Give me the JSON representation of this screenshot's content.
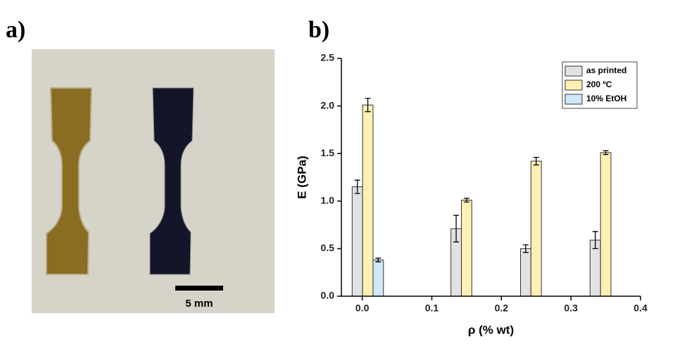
{
  "panels": {
    "a": "a)",
    "b": "b)"
  },
  "photo": {
    "scale_label": "5 mm"
  },
  "chart_data": {
    "type": "bar",
    "xlabel": "ρ (% wt)",
    "ylabel": "E (GPa)",
    "xlim": [
      -0.03,
      0.4
    ],
    "xticks": [
      {
        "value": 0,
        "label": "0.0"
      },
      0.1,
      0.2,
      0.3,
      0.4
    ],
    "ylim": [
      0,
      2.5
    ],
    "yticks": [
      {
        "value": 0,
        "label": "0.0"
      },
      0.5,
      {
        "value": 1,
        "label": "1.0"
      },
      1.5,
      {
        "value": 2,
        "label": "2.0"
      },
      2.5
    ],
    "bar_width": 0.015,
    "legend": "upper right",
    "series": [
      {
        "name": "as printed",
        "color": "#e2e2e2",
        "x": [
          -0.007,
          0.135,
          0.235,
          0.335
        ],
        "values": [
          1.15,
          0.71,
          0.5,
          0.59
        ],
        "errors": [
          0.07,
          0.14,
          0.04,
          0.09
        ]
      },
      {
        "name": "200 ºC",
        "color": "#fdf0b4",
        "x": [
          0.008,
          0.15,
          0.25,
          0.35
        ],
        "values": [
          2.01,
          1.01,
          1.42,
          1.51
        ],
        "errors": [
          0.07,
          0.02,
          0.04,
          0.02
        ]
      },
      {
        "name": "10% EtOH",
        "color": "#cfe9f6",
        "x": [
          0.023
        ],
        "values": [
          0.38
        ],
        "errors": [
          0.02
        ]
      }
    ]
  }
}
